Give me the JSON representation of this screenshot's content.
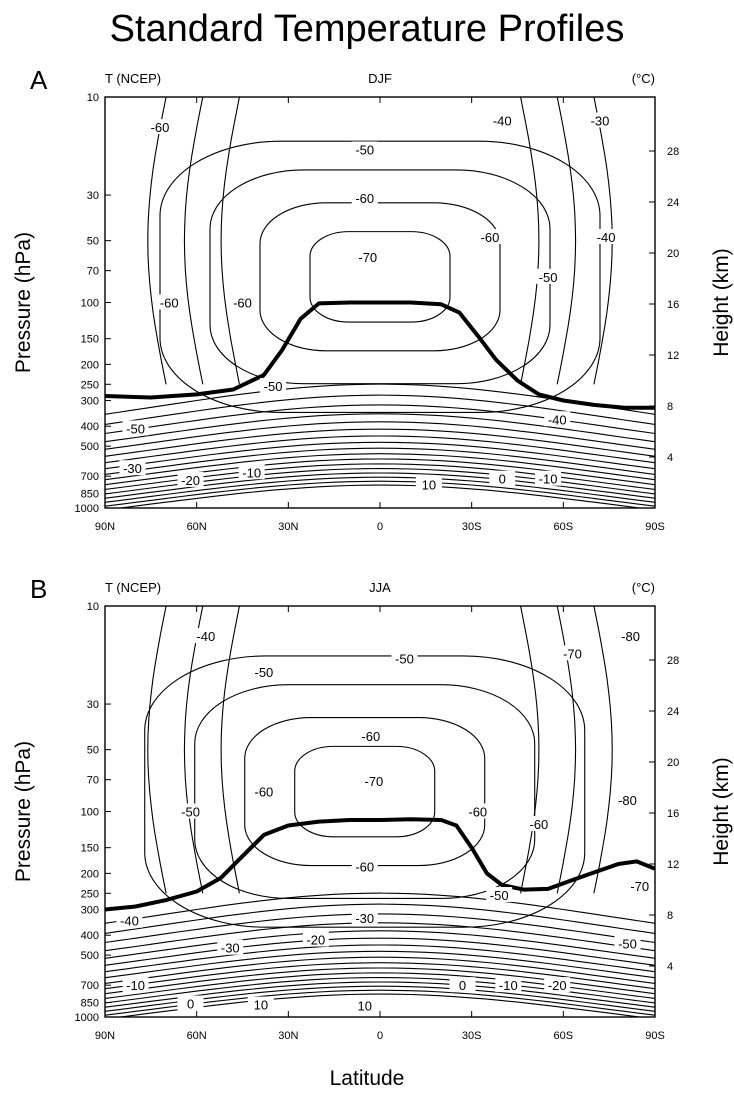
{
  "figure": {
    "title": "Standard Temperature Profiles",
    "xlabel": "Latitude"
  },
  "chart_data": [
    {
      "type": "contour",
      "panel_letter": "A",
      "label_left": "T (NCEP)",
      "label_center": "DJF",
      "label_right": "(°C)",
      "ylabel_left": "Pressure (hPa)",
      "ylabel_right": "Height (km)",
      "x_ticks": [
        "90N",
        "60N",
        "30N",
        "0",
        "30S",
        "60S",
        "90S"
      ],
      "x_tick_values": [
        90,
        60,
        30,
        0,
        -30,
        -60,
        -90
      ],
      "y_ticks_left": [
        10,
        30,
        50,
        70,
        100,
        150,
        200,
        250,
        300,
        400,
        500,
        700,
        850,
        1000
      ],
      "y_ticks_right": [
        4,
        8,
        12,
        16,
        20,
        24,
        28
      ],
      "y_scale": "log",
      "contour_interval": 5,
      "contour_labels": [
        {
          "text": "-60",
          "lat": 72,
          "p": 14
        },
        {
          "text": "-50",
          "lat": 5,
          "p": 18
        },
        {
          "text": "-40",
          "lat": -40,
          "p": 13
        },
        {
          "text": "-30",
          "lat": -72,
          "p": 13
        },
        {
          "text": "-60",
          "lat": 5,
          "p": 31
        },
        {
          "text": "-60",
          "lat": -36,
          "p": 48
        },
        {
          "text": "-40",
          "lat": -74,
          "p": 48
        },
        {
          "text": "-70",
          "lat": 4,
          "p": 60
        },
        {
          "text": "-50",
          "lat": -55,
          "p": 75
        },
        {
          "text": "-60",
          "lat": 69,
          "p": 100
        },
        {
          "text": "-60",
          "lat": 45,
          "p": 100
        },
        {
          "text": "-50",
          "lat": 35,
          "p": 255
        },
        {
          "text": "-50",
          "lat": 80,
          "p": 410
        },
        {
          "text": "-40",
          "lat": -58,
          "p": 370
        },
        {
          "text": "-30",
          "lat": 81,
          "p": 640
        },
        {
          "text": "-20",
          "lat": 62,
          "p": 730
        },
        {
          "text": "-10",
          "lat": 42,
          "p": 670
        },
        {
          "text": "10",
          "lat": -16,
          "p": 770
        },
        {
          "text": "0",
          "lat": -40,
          "p": 720
        },
        {
          "text": "-10",
          "lat": -55,
          "p": 720
        }
      ],
      "tropopause": [
        {
          "lat": 90,
          "p": 285
        },
        {
          "lat": 75,
          "p": 290
        },
        {
          "lat": 60,
          "p": 280
        },
        {
          "lat": 48,
          "p": 265
        },
        {
          "lat": 38,
          "p": 225
        },
        {
          "lat": 32,
          "p": 170
        },
        {
          "lat": 26,
          "p": 120
        },
        {
          "lat": 20,
          "p": 101
        },
        {
          "lat": 10,
          "p": 100
        },
        {
          "lat": 0,
          "p": 100
        },
        {
          "lat": -10,
          "p": 100
        },
        {
          "lat": -20,
          "p": 102
        },
        {
          "lat": -26,
          "p": 112
        },
        {
          "lat": -32,
          "p": 145
        },
        {
          "lat": -38,
          "p": 190
        },
        {
          "lat": -45,
          "p": 240
        },
        {
          "lat": -52,
          "p": 280
        },
        {
          "lat": -60,
          "p": 300
        },
        {
          "lat": -70,
          "p": 315
        },
        {
          "lat": -80,
          "p": 325
        },
        {
          "lat": -90,
          "p": 325
        }
      ]
    },
    {
      "type": "contour",
      "panel_letter": "B",
      "label_left": "T (NCEP)",
      "label_center": "JJA",
      "label_right": "(°C)",
      "ylabel_left": "Pressure (hPa)",
      "ylabel_right": "Height (km)",
      "x_ticks": [
        "90N",
        "60N",
        "30N",
        "0",
        "30S",
        "60S",
        "90S"
      ],
      "x_tick_values": [
        90,
        60,
        30,
        0,
        -30,
        -60,
        -90
      ],
      "y_ticks_left": [
        10,
        30,
        50,
        70,
        100,
        150,
        200,
        250,
        300,
        400,
        500,
        700,
        850,
        1000
      ],
      "y_ticks_right": [
        4,
        8,
        12,
        16,
        20,
        24,
        28
      ],
      "y_scale": "log",
      "contour_interval": 5,
      "contour_labels": [
        {
          "text": "-40",
          "lat": 57,
          "p": 14
        },
        {
          "text": "-50",
          "lat": -8,
          "p": 18
        },
        {
          "text": "-70",
          "lat": -63,
          "p": 17
        },
        {
          "text": "-80",
          "lat": -82,
          "p": 14
        },
        {
          "text": "-50",
          "lat": 38,
          "p": 21
        },
        {
          "text": "-60",
          "lat": 3,
          "p": 43
        },
        {
          "text": "-60",
          "lat": 38,
          "p": 80
        },
        {
          "text": "-50",
          "lat": 62,
          "p": 100
        },
        {
          "text": "-70",
          "lat": 2,
          "p": 71
        },
        {
          "text": "-60",
          "lat": -32,
          "p": 100
        },
        {
          "text": "-60",
          "lat": -52,
          "p": 115
        },
        {
          "text": "-80",
          "lat": -81,
          "p": 88
        },
        {
          "text": "-70",
          "lat": -85,
          "p": 230
        },
        {
          "text": "-60",
          "lat": 5,
          "p": 185
        },
        {
          "text": "-50",
          "lat": -39,
          "p": 255
        },
        {
          "text": "-40",
          "lat": 82,
          "p": 340
        },
        {
          "text": "-30",
          "lat": 5,
          "p": 330
        },
        {
          "text": "-30",
          "lat": 49,
          "p": 460
        },
        {
          "text": "-20",
          "lat": 21,
          "p": 420
        },
        {
          "text": "-50",
          "lat": -81,
          "p": 440
        },
        {
          "text": "-10",
          "lat": 80,
          "p": 700
        },
        {
          "text": "0",
          "lat": 62,
          "p": 860
        },
        {
          "text": "10",
          "lat": 39,
          "p": 870
        },
        {
          "text": "10",
          "lat": 5,
          "p": 880
        },
        {
          "text": "0",
          "lat": -27,
          "p": 700
        },
        {
          "text": "-10",
          "lat": -42,
          "p": 700
        },
        {
          "text": "-20",
          "lat": -58,
          "p": 700
        }
      ],
      "tropopause": [
        {
          "lat": 90,
          "p": 300
        },
        {
          "lat": 80,
          "p": 290
        },
        {
          "lat": 70,
          "p": 270
        },
        {
          "lat": 60,
          "p": 245
        },
        {
          "lat": 52,
          "p": 210
        },
        {
          "lat": 45,
          "p": 165
        },
        {
          "lat": 38,
          "p": 130
        },
        {
          "lat": 30,
          "p": 117
        },
        {
          "lat": 20,
          "p": 112
        },
        {
          "lat": 10,
          "p": 110
        },
        {
          "lat": 0,
          "p": 110
        },
        {
          "lat": -10,
          "p": 109
        },
        {
          "lat": -20,
          "p": 110
        },
        {
          "lat": -25,
          "p": 117
        },
        {
          "lat": -30,
          "p": 150
        },
        {
          "lat": -35,
          "p": 200
        },
        {
          "lat": -40,
          "p": 228
        },
        {
          "lat": -47,
          "p": 240
        },
        {
          "lat": -55,
          "p": 238
        },
        {
          "lat": -62,
          "p": 218
        },
        {
          "lat": -70,
          "p": 198
        },
        {
          "lat": -78,
          "p": 180
        },
        {
          "lat": -84,
          "p": 175
        },
        {
          "lat": -90,
          "p": 190
        }
      ]
    }
  ]
}
